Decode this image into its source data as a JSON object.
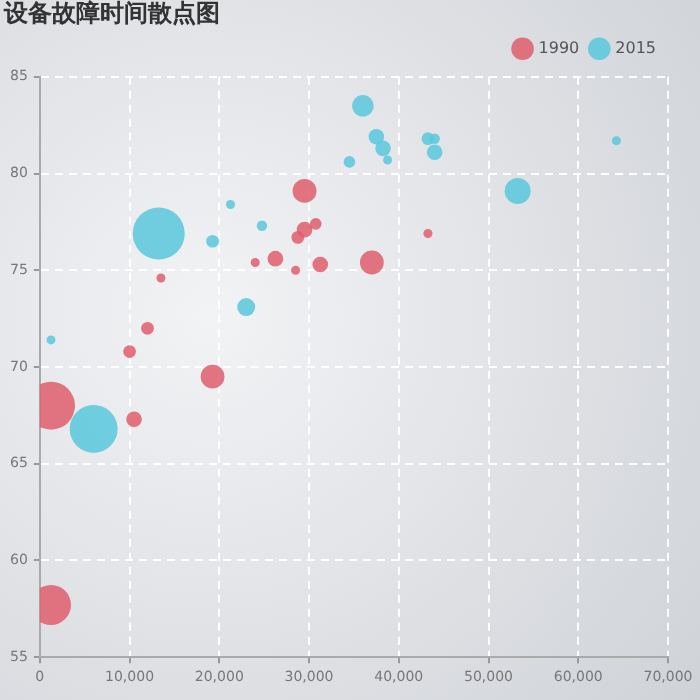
{
  "chart_data": {
    "type": "bubble",
    "title": "设备故障时间散点图",
    "legend": "top right",
    "grid": true,
    "line_style": "dashed",
    "xlim": [
      0,
      70000
    ],
    "xticks": [
      0,
      {
        "value": 10000,
        "label": "10,000"
      },
      {
        "value": 20000,
        "label": "20,000"
      },
      {
        "value": 30000,
        "label": "30,000"
      },
      {
        "value": 40000,
        "label": "40,000"
      },
      {
        "value": 50000,
        "label": "50,000"
      },
      {
        "value": 60000,
        "label": "60,000"
      },
      {
        "value": 70000,
        "label": "70,000"
      }
    ],
    "ylim": [
      55,
      85
    ],
    "yticks": [
      55,
      60,
      65,
      70,
      75,
      80,
      85
    ],
    "series": [
      {
        "name": "1990",
        "color": "#e0606e",
        "x": [
          1250,
          1250,
          10500,
          10000,
          12000,
          19250,
          13500,
          29500,
          26250,
          28750,
          29500,
          30750,
          31250,
          37000,
          24000,
          28500,
          43250
        ],
        "values": [
          57.7,
          68.0,
          67.3,
          70.8,
          72.0,
          69.5,
          74.6,
          79.1,
          75.6,
          76.7,
          77.1,
          77.4,
          75.3,
          75.4,
          75.4,
          75.0,
          76.9
        ],
        "sizes": [
          0.59,
          0.85,
          0.09,
          0.06,
          0.06,
          0.21,
          0.03,
          0.21,
          0.09,
          0.06,
          0.09,
          0.05,
          0.09,
          0.21,
          0.03,
          0.03,
          0.03
        ]
      },
      {
        "name": "2015",
        "color": "#5bc8dc",
        "x": [
          13250,
          6000,
          1250,
          23000,
          19250,
          21250,
          24750,
          36000,
          37500,
          38250,
          34500,
          38750,
          43250,
          44000,
          44000,
          53250,
          64250
        ],
        "values": [
          76.9,
          66.8,
          71.4,
          73.1,
          76.5,
          78.4,
          77.3,
          83.5,
          81.9,
          81.3,
          80.6,
          80.7,
          81.8,
          81.8,
          81.1,
          79.1,
          81.7
        ],
        "sizes": [
          1,
          0.85,
          0.03,
          0.12,
          0.06,
          0.03,
          0.04,
          0.17,
          0.09,
          0.09,
          0.05,
          0.03,
          0.06,
          0.04,
          0.09,
          0.25,
          0.03
        ]
      }
    ]
  }
}
